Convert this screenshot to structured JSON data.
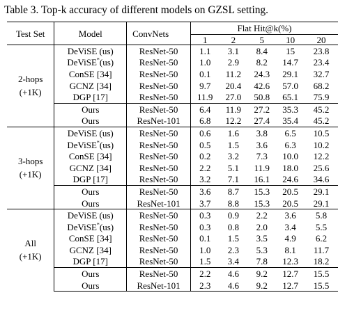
{
  "caption": "Table 3. Top-k accuracy of different models on GZSL setting.",
  "headers": {
    "test_set": "Test Set",
    "model": "Model",
    "convnets": "ConvNets",
    "flat_hit": "Flat Hit@k(%)",
    "k_values": [
      "1",
      "2",
      "5",
      "10",
      "20"
    ]
  },
  "groups": [
    {
      "name_line1": "2-hops",
      "name_line2": "(+1K)",
      "rows": [
        {
          "model": "DeViSE (us)",
          "star": false,
          "conv": "ResNet-50",
          "values": [
            "1.1",
            "3.1",
            "8.4",
            "15",
            "23.8"
          ],
          "bold": [
            false,
            false,
            false,
            false,
            false
          ]
        },
        {
          "model": "DeViSE",
          "star": true,
          "model_suffix": "(us)",
          "conv": "ResNet-50",
          "values": [
            "1.0",
            "2.9",
            "8.2",
            "14.7",
            "23.4"
          ],
          "bold": [
            false,
            false,
            false,
            false,
            false
          ]
        },
        {
          "model": "ConSE [34]",
          "star": false,
          "conv": "ResNet-50",
          "values": [
            "0.1",
            "11.2",
            "24.3",
            "29.1",
            "32.7"
          ],
          "bold": [
            false,
            false,
            false,
            false,
            false
          ]
        },
        {
          "model": "GCNZ [34]",
          "star": false,
          "conv": "ResNet-50",
          "values": [
            "9.7",
            "20.4",
            "42.6",
            "57.0",
            "68.2"
          ],
          "bold": [
            false,
            false,
            false,
            false,
            false
          ]
        },
        {
          "model": "DGP [17]",
          "star": false,
          "conv": "ResNet-50",
          "values": [
            "11.9",
            "27.0",
            "50.8",
            "65.1",
            "75.9"
          ],
          "bold": [
            true,
            true,
            true,
            true,
            true
          ]
        },
        {
          "model": "Ours",
          "star": false,
          "conv": "ResNet-50",
          "values": [
            "6.4",
            "11.9",
            "27.2",
            "35.3",
            "45.2"
          ],
          "bold": [
            false,
            false,
            false,
            false,
            false
          ]
        },
        {
          "model": "Ours",
          "star": false,
          "conv": "ResNet-101",
          "values": [
            "6.8",
            "12.2",
            "27.4",
            "35.4",
            "45.2"
          ],
          "bold": [
            false,
            false,
            false,
            false,
            false
          ]
        }
      ]
    },
    {
      "name_line1": "3-hops",
      "name_line2": "(+1K)",
      "rows": [
        {
          "model": "DeViSE (us)",
          "star": false,
          "conv": "ResNet-50",
          "values": [
            "0.6",
            "1.6",
            "3.8",
            "6.5",
            "10.5"
          ],
          "bold": [
            false,
            false,
            false,
            false,
            false
          ]
        },
        {
          "model": "DeViSE",
          "star": true,
          "model_suffix": "(us)",
          "conv": "ResNet-50",
          "values": [
            "0.5",
            "1.5",
            "3.6",
            "6.3",
            "10.2"
          ],
          "bold": [
            false,
            false,
            false,
            false,
            false
          ]
        },
        {
          "model": "ConSE [34]",
          "star": false,
          "conv": "ResNet-50",
          "values": [
            "0.2",
            "3.2",
            "7.3",
            "10.0",
            "12.2"
          ],
          "bold": [
            false,
            false,
            false,
            false,
            false
          ]
        },
        {
          "model": "GCNZ [34]",
          "star": false,
          "conv": "ResNet-50",
          "values": [
            "2.2",
            "5.1",
            "11.9",
            "18.0",
            "25.6"
          ],
          "bold": [
            false,
            false,
            false,
            false,
            false
          ]
        },
        {
          "model": "DGP [17]",
          "star": false,
          "conv": "ResNet-50",
          "values": [
            "3.2",
            "7.1",
            "16.1",
            "24.6",
            "34.6"
          ],
          "bold": [
            false,
            false,
            true,
            true,
            true
          ]
        },
        {
          "model": "Ours",
          "star": false,
          "conv": "ResNet-50",
          "values": [
            "3.6",
            "8.7",
            "15.3",
            "20.5",
            "29.1"
          ],
          "bold": [
            true,
            true,
            false,
            false,
            false
          ]
        },
        {
          "model": "Ours",
          "star": false,
          "conv": "ResNet-101",
          "values": [
            "3.7",
            "8.8",
            "15.3",
            "20.5",
            "29.1"
          ],
          "bold": [
            false,
            false,
            false,
            false,
            false
          ]
        }
      ]
    },
    {
      "name_line1": "All",
      "name_line2": "(+1K)",
      "rows": [
        {
          "model": "DeViSE (us)",
          "star": false,
          "conv": "ResNet-50",
          "values": [
            "0.3",
            "0.9",
            "2.2",
            "3.6",
            "5.8"
          ],
          "bold": [
            false,
            false,
            false,
            false,
            false
          ]
        },
        {
          "model": "DeViSE",
          "star": true,
          "model_suffix": "(us)",
          "conv": "ResNet-50",
          "values": [
            "0.3",
            "0.8",
            "2.0",
            "3.4",
            "5.5"
          ],
          "bold": [
            false,
            false,
            false,
            false,
            false
          ]
        },
        {
          "model": "ConSE [34]",
          "star": false,
          "conv": "ResNet-50",
          "values": [
            "0.1",
            "1.5",
            "3.5",
            "4.9",
            "6.2"
          ],
          "bold": [
            false,
            false,
            false,
            false,
            false
          ]
        },
        {
          "model": "GCNZ [34]",
          "star": false,
          "conv": "ResNet-50",
          "values": [
            "1.0",
            "2.3",
            "5.3",
            "8.1",
            "11.7"
          ],
          "bold": [
            false,
            false,
            false,
            false,
            false
          ]
        },
        {
          "model": "DGP [17]",
          "star": false,
          "conv": "ResNet-50",
          "values": [
            "1.5",
            "3.4",
            "7.8",
            "12.3",
            "18.2"
          ],
          "bold": [
            false,
            false,
            false,
            false,
            true
          ]
        },
        {
          "model": "Ours",
          "star": false,
          "conv": "ResNet-50",
          "values": [
            "2.2",
            "4.6",
            "9.2",
            "12.7",
            "15.5"
          ],
          "bold": [
            true,
            true,
            true,
            true,
            false
          ]
        },
        {
          "model": "Ours",
          "star": false,
          "conv": "ResNet-101",
          "values": [
            "2.3",
            "4.6",
            "9.2",
            "12.7",
            "15.5"
          ],
          "bold": [
            false,
            false,
            false,
            false,
            false
          ]
        }
      ]
    }
  ]
}
